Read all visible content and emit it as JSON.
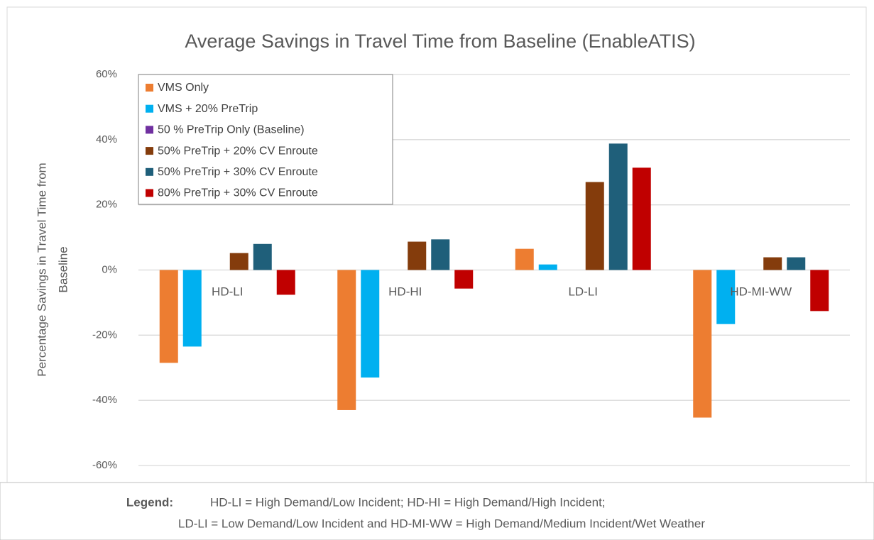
{
  "chart_data": {
    "type": "bar",
    "title": "Average Savings in Travel Time from Baseline (EnableATIS)",
    "y_label": [
      "Percentage Savings in Travel Time from",
      "Baseline"
    ],
    "categories": [
      "HD-LI",
      "HD-HI",
      "LD-LI",
      "HD-MI-WW"
    ],
    "series": [
      {
        "name": "VMS Only",
        "color": "#ed7d31",
        "values": [
          -28.5,
          -43,
          6.5,
          -45.3
        ]
      },
      {
        "name": "VMS + 20% PreTrip",
        "color": "#00b0f0",
        "values": [
          -23.5,
          -33,
          1.7,
          -16.6
        ]
      },
      {
        "name": "50 % PreTrip Only (Baseline)",
        "color": "#7030a0",
        "values": [
          0,
          0,
          0,
          0
        ]
      },
      {
        "name": "50% PreTrip + 20% CV Enroute",
        "color": "#843c0c",
        "values": [
          5.2,
          8.7,
          27,
          3.9
        ]
      },
      {
        "name": "50% PreTrip + 30% CV Enroute",
        "color": "#1f5f7a",
        "values": [
          8,
          9.4,
          38.8,
          3.9
        ]
      },
      {
        "name": "80% PreTrip + 30% CV Enroute",
        "color": "#c00000",
        "values": [
          -7.6,
          -5.7,
          31.4,
          -12.6
        ]
      }
    ],
    "ylim": [
      -60,
      60
    ],
    "yticks": [
      {
        "value": -60,
        "label": "-60%"
      },
      {
        "value": -40,
        "label": "-40%"
      },
      {
        "value": -20,
        "label": "-20%"
      },
      {
        "value": 0,
        "label": "0%"
      },
      {
        "value": 20,
        "label": "20%"
      },
      {
        "value": 40,
        "label": "40%"
      },
      {
        "value": 60,
        "label": "60%"
      }
    ],
    "grid": true,
    "legend": "top-left"
  },
  "footer": {
    "label": "Legend:",
    "lines": [
      "HD-LI = High Demand/Low Incident; HD-HI = High Demand/High Incident;",
      "LD-LI = Low Demand/Low Incident and HD-MI-WW = High Demand/Medium Incident/Wet Weather"
    ]
  }
}
